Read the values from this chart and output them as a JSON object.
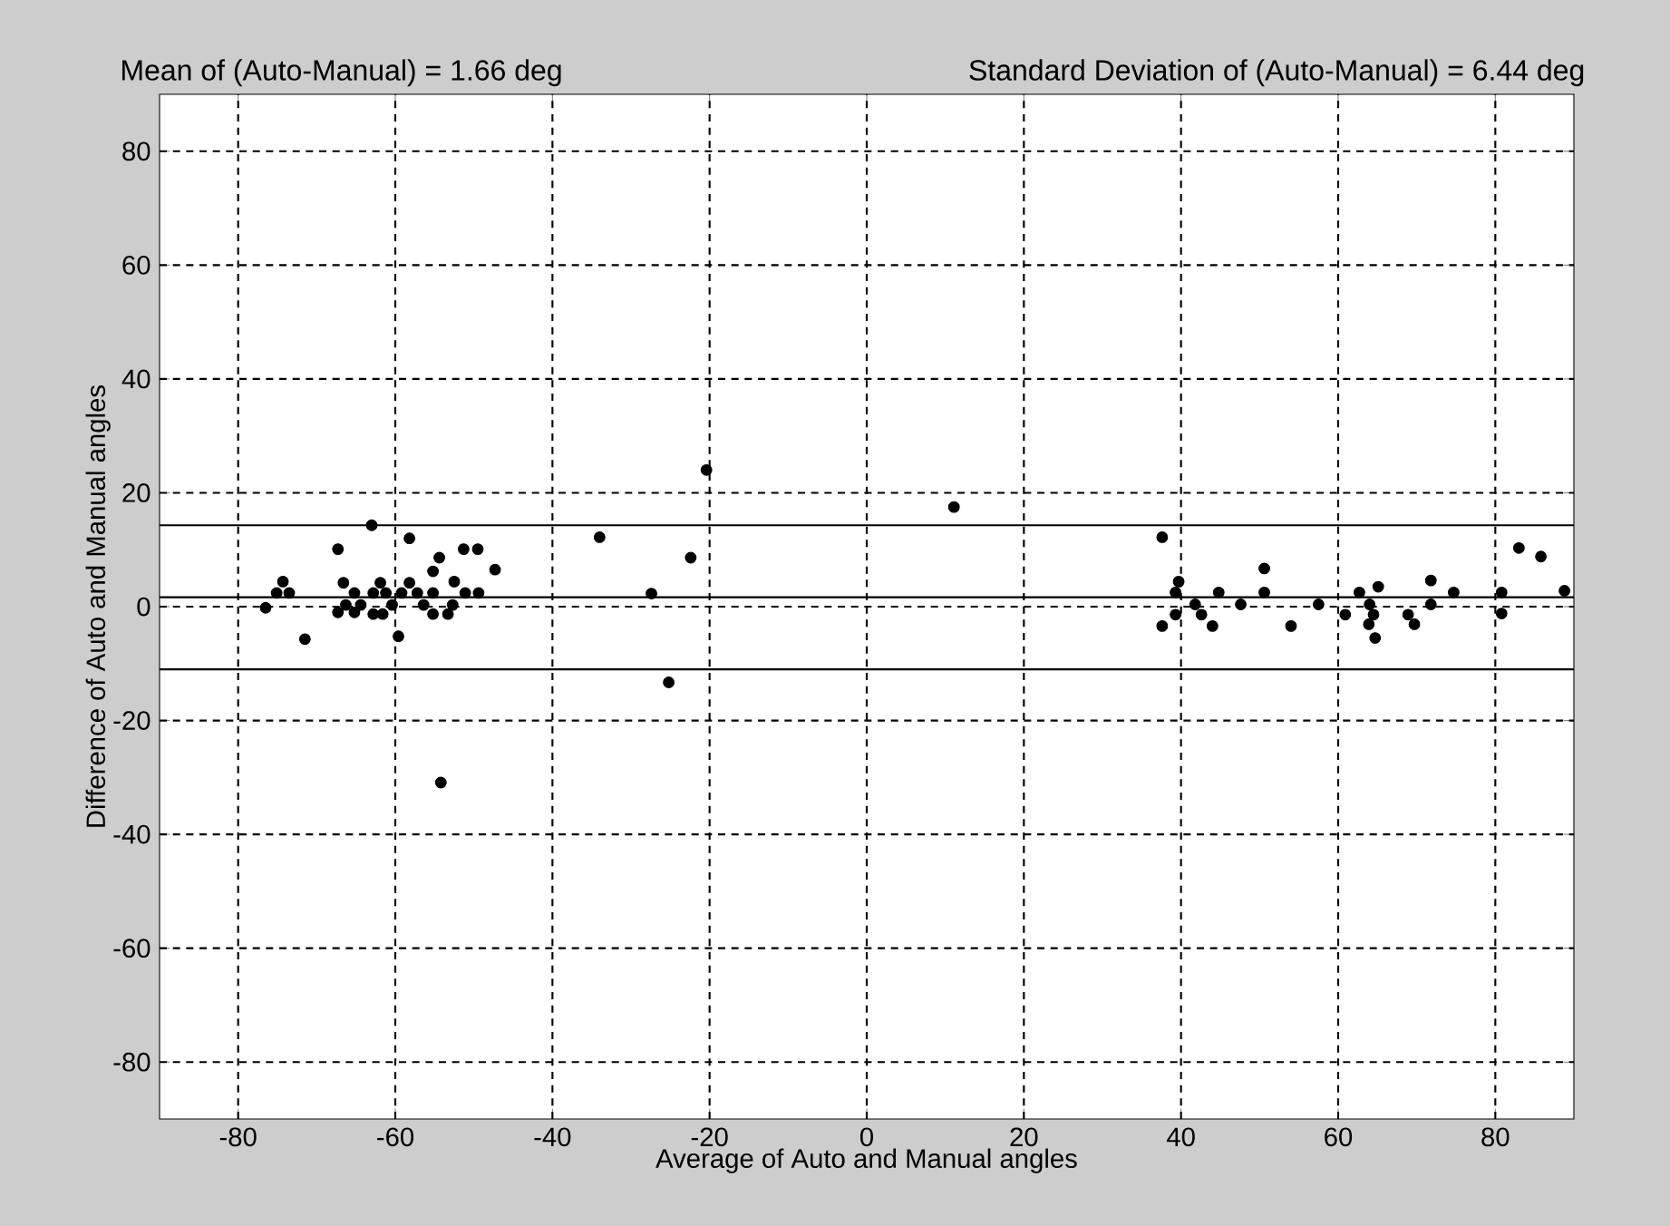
{
  "chart_data": {
    "type": "scatter",
    "xlabel": "Average of Auto and Manual angles",
    "ylabel": "Difference of Auto and Manual angles",
    "annotations": [
      "Mean of (Auto-Manual) = 1.66 deg",
      "Standard Deviation of (Auto-Manual) = 6.44 deg"
    ],
    "x": [
      -63.0,
      -67.3,
      -58.2,
      -74.3,
      -75.1,
      -73.5,
      -76.5,
      -71.5,
      -66.6,
      -65.2,
      -62.8,
      -61.2,
      -61.9,
      -67.3,
      -66.3,
      -65.2,
      -64.4,
      -62.8,
      -61.6,
      -60.4,
      -59.2,
      -59.6,
      -58.2,
      -57.2,
      -56.4,
      -55.2,
      -55.2,
      -54.4,
      -55.2,
      -53.3,
      -52.7,
      -52.5,
      -51.3,
      -49.5,
      -51.1,
      -49.4,
      -47.3,
      -54.2,
      -20.4,
      11.1,
      -34.0,
      -22.4,
      -27.4,
      -25.2,
      37.6,
      39.7,
      39.3,
      37.6,
      39.3,
      41.8,
      42.6,
      44.0,
      44.8,
      47.6,
      50.6,
      50.6,
      54.0,
      57.5,
      60.9,
      62.7,
      64.0,
      64.5,
      65.1,
      63.9,
      64.7,
      68.9,
      69.7,
      71.8,
      71.8,
      74.7,
      80.8,
      80.8,
      83.0,
      85.8,
      88.8
    ],
    "values": [
      14.3,
      10.1,
      12.0,
      4.4,
      2.4,
      2.4,
      -0.2,
      -5.7,
      4.2,
      2.4,
      2.4,
      2.4,
      4.2,
      -1.0,
      0.3,
      -1.0,
      0.3,
      -1.3,
      -1.3,
      0.3,
      2.4,
      -5.2,
      4.2,
      2.4,
      0.3,
      2.4,
      6.2,
      8.6,
      -1.3,
      -1.3,
      0.3,
      4.4,
      10.1,
      10.1,
      2.4,
      2.4,
      6.5,
      -30.9,
      24.0,
      17.5,
      12.2,
      8.6,
      2.3,
      -13.3,
      12.2,
      4.4,
      2.5,
      -3.4,
      -1.4,
      0.4,
      -1.4,
      -3.4,
      2.5,
      0.4,
      6.7,
      2.5,
      -3.4,
      0.4,
      -1.4,
      2.5,
      0.4,
      -1.4,
      3.5,
      -3.1,
      -5.5,
      -1.4,
      -3.1,
      4.6,
      0.4,
      2.5,
      2.5,
      -1.2,
      10.3,
      8.8,
      2.8
    ],
    "color": "#000000",
    "xlim": [
      -90,
      90
    ],
    "ylim": [
      -90,
      90
    ],
    "xticks": [
      -80,
      -60,
      -40,
      -20,
      0,
      20,
      40,
      60,
      80
    ],
    "yticks": [
      -80,
      -60,
      -40,
      -20,
      0,
      20,
      40,
      60,
      80
    ],
    "grid": true,
    "ref_lines": [
      {
        "axis": "y",
        "value": 1.66,
        "color": "#000000",
        "line_style": "solid"
      },
      {
        "axis": "y",
        "value": 14.3,
        "color": "#000000",
        "line_style": "solid"
      },
      {
        "axis": "y",
        "value": -11.0,
        "color": "#000000",
        "line_style": "solid"
      }
    ]
  }
}
